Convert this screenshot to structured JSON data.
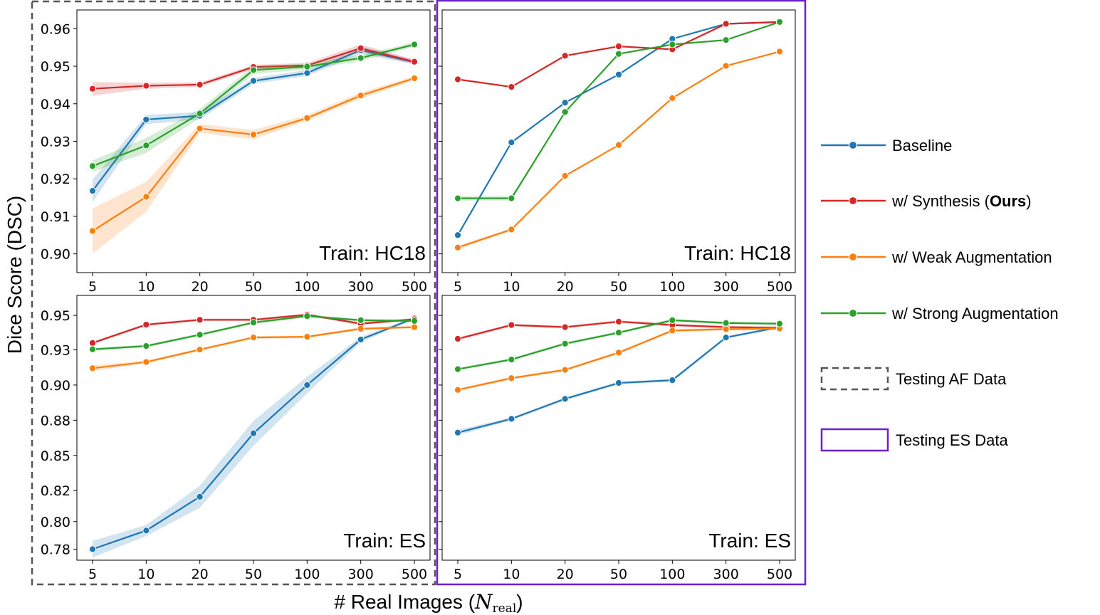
{
  "figure": {
    "ylabel": "Dice Score (DSC)",
    "xlabel_prefix": "# Real Images (",
    "xlabel_var": "N",
    "xlabel_sub": "real",
    "xlabel_suffix": ")"
  },
  "legend": {
    "items": [
      {
        "label": "Baseline",
        "color": "#1f77b4"
      },
      {
        "label_pre": "w/ Synthesis (",
        "label_bold": "Ours",
        "label_post": ")",
        "color": "#d62728"
      },
      {
        "label": "w/ Weak Augmentation",
        "color": "#ff7f0e"
      },
      {
        "label": "w/ Strong Augmentation",
        "color": "#2ca02c"
      }
    ],
    "boxes": [
      {
        "label": "Testing AF Data",
        "style": "dashed",
        "color": "#555555"
      },
      {
        "label": "Testing ES Data",
        "style": "solid",
        "color": "#6a1fd1"
      }
    ]
  },
  "chart_data": [
    {
      "type": "line",
      "annotation": "Train: HC18",
      "test": "AF",
      "categories": [
        "5",
        "10",
        "20",
        "50",
        "100",
        "300",
        "500"
      ],
      "ylim": [
        0.895,
        0.965
      ],
      "yticks": [
        0.9,
        0.91,
        0.92,
        0.93,
        0.94,
        0.95,
        0.96
      ],
      "yticklabels": [
        "0.90",
        "0.91",
        "0.92",
        "0.93",
        "0.94",
        "0.95",
        "0.96"
      ],
      "series": [
        {
          "color": "#1f77b4",
          "values": [
            0.9168,
            0.9358,
            0.9368,
            0.9461,
            0.9482,
            0.9543,
            0.9511
          ],
          "band": [
            0.003,
            0.0012,
            0.001,
            0.0008,
            0.0008,
            0.001,
            0.0006
          ]
        },
        {
          "color": "#d62728",
          "values": [
            0.944,
            0.9448,
            0.9451,
            0.9498,
            0.9502,
            0.9548,
            0.9512
          ],
          "band": [
            0.0018,
            0.0008,
            0.0006,
            0.0006,
            0.0007,
            0.001,
            0.0006
          ]
        },
        {
          "color": "#ff7f0e",
          "values": [
            0.9061,
            0.9152,
            0.9334,
            0.9318,
            0.9362,
            0.9422,
            0.9468
          ],
          "band": [
            0.006,
            0.004,
            0.0012,
            0.0012,
            0.0008,
            0.0008,
            0.0006
          ]
        },
        {
          "color": "#2ca02c",
          "values": [
            0.9234,
            0.9289,
            0.9374,
            0.949,
            0.9499,
            0.9522,
            0.9558
          ],
          "band": [
            0.0015,
            0.002,
            0.0012,
            0.001,
            0.0008,
            0.0008,
            0.0006
          ]
        }
      ]
    },
    {
      "type": "line",
      "annotation": "Train: HC18",
      "test": "ES",
      "categories": [
        "5",
        "10",
        "20",
        "50",
        "100",
        "300",
        "500"
      ],
      "ylim": [
        0.895,
        0.965
      ],
      "yticks": [
        0.9,
        0.91,
        0.92,
        0.93,
        0.94,
        0.95,
        0.96
      ],
      "yticklabels": [],
      "series": [
        {
          "color": "#1f77b4",
          "values": [
            0.905,
            0.9297,
            0.9403,
            0.9478,
            0.9573,
            0.9613,
            0.9618
          ],
          "band": [
            0,
            0,
            0,
            0,
            0,
            0,
            0
          ]
        },
        {
          "color": "#d62728",
          "values": [
            0.9465,
            0.9445,
            0.9528,
            0.9553,
            0.9545,
            0.9613,
            0.9618
          ],
          "band": [
            0,
            0,
            0,
            0,
            0,
            0,
            0
          ]
        },
        {
          "color": "#ff7f0e",
          "values": [
            0.9017,
            0.9065,
            0.9208,
            0.929,
            0.9415,
            0.9501,
            0.9539
          ],
          "band": [
            0.0005,
            0.0004,
            0,
            0,
            0,
            0,
            0
          ]
        },
        {
          "color": "#2ca02c",
          "values": [
            0.9148,
            0.9148,
            0.9378,
            0.9533,
            0.9558,
            0.957,
            0.9618
          ],
          "band": [
            0.0006,
            0.0006,
            0,
            0,
            0,
            0,
            0
          ]
        }
      ]
    },
    {
      "type": "line",
      "annotation": "Train: ES",
      "test": "AF",
      "categories": [
        "5",
        "10",
        "20",
        "50",
        "100",
        "300",
        "500"
      ],
      "ylim": [
        0.7705,
        0.9625
      ],
      "yticks": [
        0.78,
        0.8,
        0.82,
        0.85,
        0.88,
        0.9,
        0.93,
        0.95
      ],
      "ytickpos": [
        0.7785,
        0.7985,
        0.821,
        0.8465,
        0.872,
        0.8975,
        0.923,
        0.948
      ],
      "yticklabels": [
        "0.78",
        "0.80",
        "0.82",
        "0.85",
        "0.88",
        "0.90",
        "0.93",
        "0.95"
      ],
      "series": [
        {
          "color": "#1f77b4",
          "values": [
            0.7785,
            0.792,
            0.8165,
            0.8625,
            0.8975,
            0.9305,
            0.946
          ],
          "band": [
            0.006,
            0.004,
            0.008,
            0.009,
            0.006,
            0.002,
            0.001
          ]
        },
        {
          "color": "#d62728",
          "values": [
            0.928,
            0.9413,
            0.9448,
            0.9448,
            0.9485,
            0.942,
            0.9452
          ],
          "band": [
            0.001,
            0.001,
            0.001,
            0.001,
            0.001,
            0.001,
            0.001
          ]
        },
        {
          "color": "#ff7f0e",
          "values": [
            0.9097,
            0.9142,
            0.9232,
            0.932,
            0.9325,
            0.9383,
            0.9395
          ],
          "band": [
            0.002,
            0.001,
            0.001,
            0.001,
            0.001,
            0.001,
            0.001
          ]
        },
        {
          "color": "#2ca02c",
          "values": [
            0.9234,
            0.9258,
            0.934,
            0.9428,
            0.9475,
            0.9445,
            0.944
          ],
          "band": [
            0.001,
            0.001,
            0.001,
            0.001,
            0.001,
            0.001,
            0.001
          ]
        }
      ]
    },
    {
      "type": "line",
      "annotation": "Train: ES",
      "test": "ES",
      "categories": [
        "5",
        "10",
        "20",
        "50",
        "100",
        "300",
        "500"
      ],
      "ylim": [
        0.7705,
        0.9625
      ],
      "yticks": [
        0.78,
        0.8,
        0.82,
        0.85,
        0.88,
        0.9,
        0.93,
        0.95
      ],
      "ytickpos": [
        0.7785,
        0.7985,
        0.821,
        0.8465,
        0.872,
        0.8975,
        0.923,
        0.948
      ],
      "yticklabels": [],
      "series": [
        {
          "color": "#1f77b4",
          "values": [
            0.863,
            0.873,
            0.8875,
            0.899,
            0.901,
            0.932,
            0.9395
          ],
          "band": [
            0.002,
            0.001,
            0.001,
            0.001,
            0.001,
            0.001,
            0.001
          ]
        },
        {
          "color": "#d62728",
          "values": [
            0.931,
            0.941,
            0.9395,
            0.9435,
            0.941,
            0.9395,
            0.939
          ],
          "band": [
            0.001,
            0.001,
            0.001,
            0.001,
            0.001,
            0.001,
            0.001
          ]
        },
        {
          "color": "#ff7f0e",
          "values": [
            0.894,
            0.9025,
            0.9085,
            0.921,
            0.937,
            0.938,
            0.9385
          ],
          "band": [
            0.001,
            0.001,
            0.001,
            0.001,
            0.001,
            0.001,
            0.001
          ]
        },
        {
          "color": "#2ca02c",
          "values": [
            0.909,
            0.916,
            0.9275,
            0.9355,
            0.9445,
            0.9425,
            0.942
          ],
          "band": [
            0.001,
            0.001,
            0.001,
            0.001,
            0.001,
            0.001,
            0.001
          ]
        }
      ]
    }
  ]
}
